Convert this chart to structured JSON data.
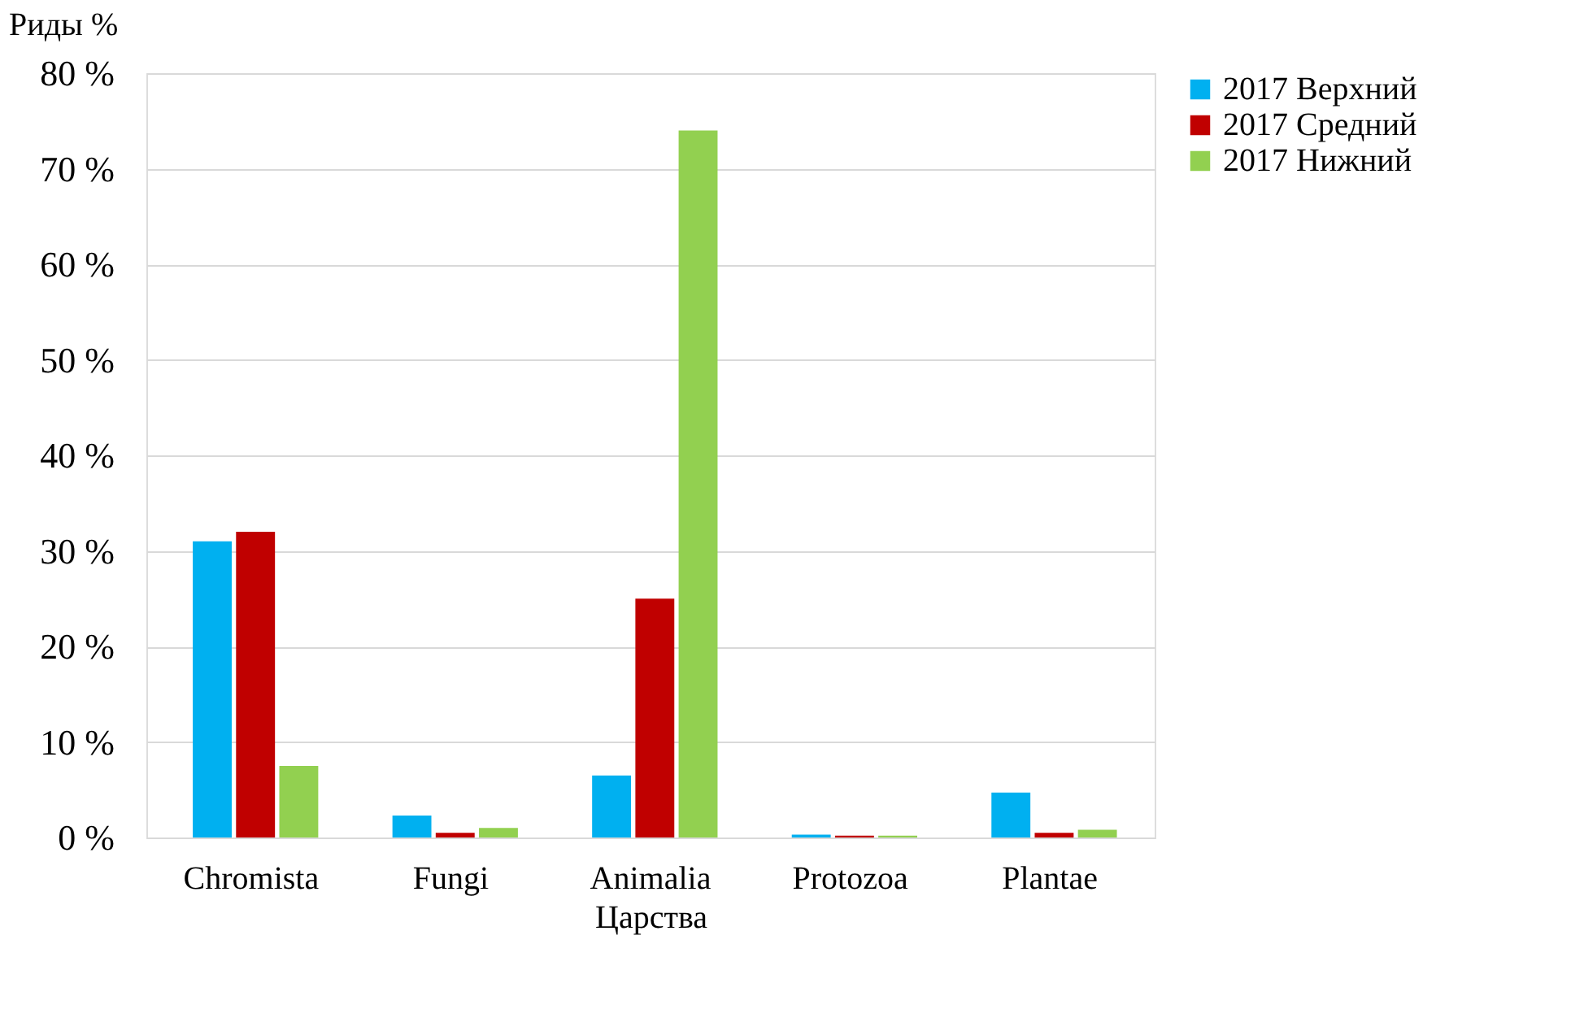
{
  "chart_data": {
    "type": "bar",
    "ylabel": "Риды %",
    "xlabel": "Царства",
    "categories": [
      "Chromista",
      "Fungi",
      "Animalia",
      "Protozoa",
      "Plantae"
    ],
    "series": [
      {
        "name": "2017 Верхний",
        "color": "#00b0f0",
        "values": [
          31,
          2.3,
          6.5,
          0.3,
          4.7
        ]
      },
      {
        "name": "2017 Средний",
        "color": "#c00000",
        "values": [
          32,
          0.5,
          25,
          0.2,
          0.5
        ]
      },
      {
        "name": "2017 Нижний",
        "color": "#92d050",
        "values": [
          7.5,
          1,
          74,
          0.2,
          0.8
        ]
      }
    ],
    "ylim": [
      0,
      80
    ],
    "yticks": [
      {
        "value": 0,
        "label": "0 %"
      },
      {
        "value": 10,
        "label": "10 %"
      },
      {
        "value": 20,
        "label": "20 %"
      },
      {
        "value": 30,
        "label": "30 %"
      },
      {
        "value": 40,
        "label": "40 %"
      },
      {
        "value": 50,
        "label": "50 %"
      },
      {
        "value": 60,
        "label": "60 %"
      },
      {
        "value": 70,
        "label": "70 %"
      },
      {
        "value": 80,
        "label": "80 %"
      }
    ],
    "grid": "y",
    "legend": "right"
  }
}
